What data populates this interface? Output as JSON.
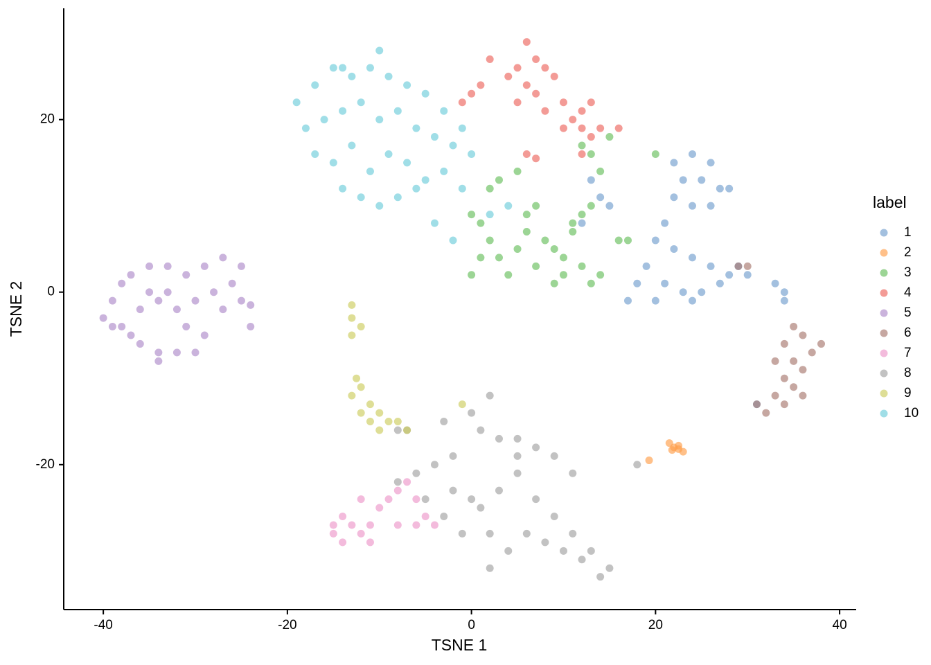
{
  "chart_data": {
    "type": "scatter",
    "xlabel": "TSNE 1",
    "ylabel": "TSNE 2",
    "legend_title": "label",
    "legend": "right",
    "xlim": [
      -44.3,
      41.8
    ],
    "ylim": [
      -36.8,
      32.9
    ],
    "xticks": [
      -40,
      -20,
      0,
      20,
      40
    ],
    "yticks": [
      -20,
      0,
      20
    ],
    "series": [
      {
        "name": "1",
        "color": "#729ECE",
        "x": [
          22,
          24,
          26,
          23,
          25,
          27,
          22,
          24,
          26,
          28,
          21,
          20,
          22,
          24,
          26,
          28,
          30,
          19,
          18,
          21,
          23,
          25,
          27,
          29,
          17,
          20,
          24,
          34,
          34,
          33,
          31,
          14,
          13,
          15,
          12
        ],
        "y": [
          15,
          16,
          15,
          13,
          13,
          12,
          11,
          10,
          10,
          12,
          8,
          6,
          5,
          4,
          3,
          2,
          2,
          3,
          1,
          1,
          0,
          0,
          1,
          3,
          -1,
          -1,
          -1,
          0,
          -1,
          1,
          -13,
          11,
          13,
          10,
          8
        ]
      },
      {
        "name": "2",
        "color": "#FF9E4A",
        "x": [
          21.5,
          22,
          22.5,
          23,
          21.8,
          22.5,
          19.3
        ],
        "y": [
          -17.5,
          -18,
          -18.2,
          -18.5,
          -18.3,
          -17.8,
          -19.5
        ]
      },
      {
        "name": "3",
        "color": "#67BF5C",
        "x": [
          0,
          1,
          2,
          3,
          4,
          5,
          6,
          7,
          8,
          9,
          10,
          11,
          12,
          13,
          14,
          12,
          13,
          11,
          14,
          13,
          12,
          15,
          5,
          3,
          2,
          6,
          7,
          9,
          0,
          1,
          16,
          17,
          20,
          10
        ],
        "y": [
          9,
          8,
          6,
          4,
          2,
          5,
          7,
          3,
          6,
          1,
          4,
          7,
          3,
          1,
          2,
          9,
          10,
          8,
          14,
          16,
          17,
          18,
          14,
          13,
          12,
          9,
          10,
          5,
          2,
          4,
          6,
          6,
          16,
          2
        ]
      },
      {
        "name": "4",
        "color": "#ED665D",
        "x": [
          6,
          7,
          5,
          8,
          6,
          4,
          9,
          7,
          5,
          8,
          10,
          11,
          12,
          13,
          12,
          13,
          14,
          16,
          10,
          2,
          0,
          -1,
          1,
          7,
          6,
          12
        ],
        "y": [
          29,
          27,
          26,
          26,
          24,
          25,
          25,
          23,
          22,
          21,
          22,
          20,
          21,
          22,
          19,
          18,
          19,
          19,
          19,
          27,
          23,
          22,
          24,
          15.5,
          16,
          16
        ]
      },
      {
        "name": "5",
        "color": "#AD8BC9",
        "x": [
          -40,
          -39,
          -38,
          -37,
          -35,
          -33,
          -31,
          -29,
          -27,
          -25,
          -26,
          -28,
          -30,
          -32,
          -34,
          -36,
          -38,
          -36,
          -34,
          -32,
          -30,
          -31,
          -29,
          -27,
          -33,
          -35,
          -37,
          -25,
          -24,
          -24,
          -39,
          -34
        ],
        "y": [
          -3,
          -1,
          1,
          2,
          3,
          3,
          2,
          3,
          4,
          3,
          1,
          0,
          -1,
          -2,
          -1,
          -2,
          -4,
          -6,
          -7,
          -7,
          -7,
          -4,
          -5,
          -2,
          0,
          0,
          -5,
          -1,
          -4,
          -1.5,
          -4,
          -8
        ]
      },
      {
        "name": "6",
        "color": "#A8786E",
        "x": [
          35,
          36,
          34,
          37,
          35,
          33,
          36,
          34,
          35,
          33,
          34,
          32,
          31,
          38,
          30,
          29,
          36
        ],
        "y": [
          -4,
          -5,
          -6,
          -7,
          -8,
          -8,
          -9,
          -10,
          -11,
          -12,
          -13,
          -14,
          -13,
          -6,
          3,
          3,
          -12
        ]
      },
      {
        "name": "7",
        "color": "#ED97CA",
        "x": [
          -15,
          -14,
          -13,
          -12,
          -14,
          -11,
          -10,
          -9,
          -8,
          -7,
          -6,
          -5,
          -6,
          -12,
          -11,
          -4,
          -8,
          -15
        ],
        "y": [
          -28,
          -29,
          -27,
          -28,
          -26,
          -27,
          -25,
          -24,
          -23,
          -22,
          -24,
          -26,
          -27,
          -24,
          -29,
          -27,
          -27,
          -27
        ]
      },
      {
        "name": "8",
        "color": "#A2A2A2",
        "x": [
          0,
          1,
          3,
          5,
          7,
          9,
          11,
          -2,
          -4,
          -6,
          -8,
          -5,
          -3,
          -1,
          1,
          3,
          5,
          7,
          9,
          11,
          13,
          15,
          14,
          12,
          10,
          8,
          6,
          4,
          2,
          0,
          -2,
          5,
          2,
          -3,
          18,
          -7,
          -8,
          2
        ],
        "y": [
          -14,
          -16,
          -17,
          -17,
          -18,
          -19,
          -21,
          -19,
          -20,
          -21,
          -22,
          -24,
          -26,
          -28,
          -25,
          -23,
          -21,
          -24,
          -26,
          -28,
          -30,
          -32,
          -33,
          -31,
          -30,
          -29,
          -28,
          -30,
          -28,
          -24,
          -23,
          -19,
          -32,
          -15,
          -20,
          -16,
          -16,
          -12
        ]
      },
      {
        "name": "9",
        "color": "#CDCC5D",
        "x": [
          -13,
          -13,
          -12,
          -13,
          -12.5,
          -13,
          -12,
          -11,
          -12,
          -10,
          -9,
          -10,
          -8,
          -11,
          -1,
          -7
        ],
        "y": [
          -1.5,
          -3,
          -4,
          -5,
          -10,
          -12,
          -11,
          -13,
          -14,
          -14,
          -15,
          -16,
          -15,
          -15,
          -13,
          -16
        ]
      },
      {
        "name": "10",
        "color": "#6DCCDA",
        "x": [
          -19,
          -17,
          -15,
          -13,
          -11,
          -9,
          -7,
          -5,
          -3,
          -1,
          -18,
          -16,
          -14,
          -12,
          -10,
          -8,
          -6,
          -4,
          -2,
          0,
          -17,
          -15,
          -13,
          -11,
          -9,
          -7,
          -5,
          -3,
          -1,
          -14,
          -12,
          -10,
          -8,
          -6,
          -4,
          -2,
          2,
          4,
          -10,
          -14
        ],
        "y": [
          22,
          24,
          26,
          25,
          26,
          25,
          24,
          23,
          21,
          19,
          19,
          20,
          21,
          22,
          20,
          21,
          19,
          18,
          17,
          16,
          16,
          15,
          17,
          14,
          16,
          15,
          13,
          14,
          12,
          12,
          11,
          10,
          11,
          12,
          8,
          6,
          9,
          10,
          28,
          26
        ]
      }
    ]
  }
}
